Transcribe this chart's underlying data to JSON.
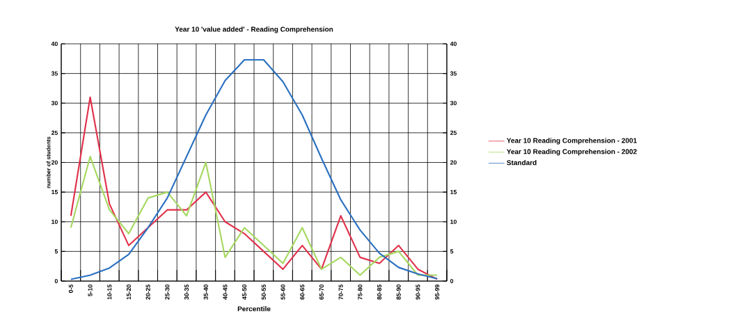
{
  "chart_data": {
    "type": "line",
    "title": "Year 10 'value added' - Reading Comprehension",
    "xlabel": "Percentile",
    "ylabel": "number of students",
    "categories": [
      "0-5",
      "5-10",
      "10-15",
      "15-20",
      "20-25",
      "25-30",
      "30-35",
      "35-40",
      "40-45",
      "45-50",
      "50-55",
      "55-60",
      "60-65",
      "65-70",
      "70-75",
      "75-80",
      "80-85",
      "85-90",
      "90-95",
      "95-99"
    ],
    "series": [
      {
        "name": "Year 10 Reading Comprehension - 2001",
        "color": "#e0304a",
        "values": [
          11,
          31,
          13,
          6,
          9,
          12,
          12,
          15,
          10,
          8,
          5,
          2,
          6,
          2,
          11,
          4,
          3,
          6,
          2,
          0.3
        ]
      },
      {
        "name": "Year 10 Reading Comprehension - 2002",
        "color": "#a6d860",
        "values": [
          9,
          21,
          12,
          8,
          14,
          15,
          11,
          20,
          4,
          9,
          6,
          3,
          9,
          2,
          4,
          1,
          4,
          5,
          1,
          1
        ]
      },
      {
        "name": "Standard",
        "color": "#2a6fc0",
        "values": [
          0.3,
          1,
          2.2,
          4.5,
          9,
          14,
          21,
          28,
          33.8,
          37.3,
          37.3,
          33.6,
          28,
          20.7,
          13.7,
          8.6,
          4.7,
          2.3,
          1.2,
          0.4
        ]
      }
    ],
    "ylim": [
      0,
      40
    ],
    "yticks": [
      0,
      5,
      10,
      15,
      20,
      25,
      30,
      35,
      40
    ],
    "y2lim": [
      0,
      40
    ],
    "y2ticks": [
      0,
      5,
      10,
      15,
      20,
      25,
      30,
      35,
      40
    ],
    "grid": true,
    "legend": "right"
  }
}
